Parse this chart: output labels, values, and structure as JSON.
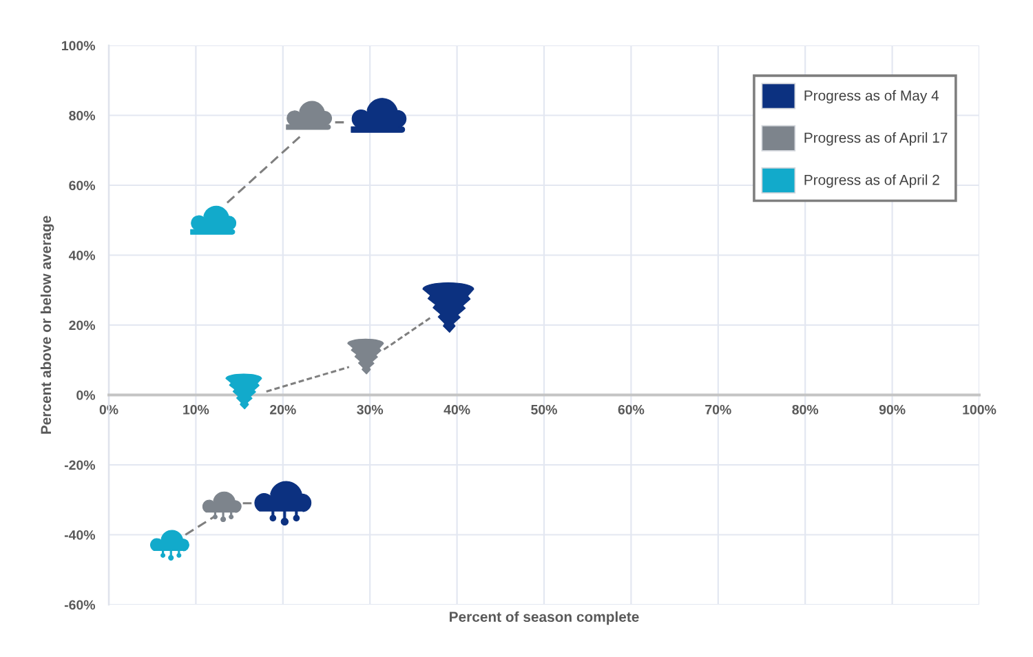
{
  "chart_data": {
    "type": "scatter",
    "xlabel": "Percent of season complete",
    "ylabel": "Percent above or below average",
    "xlim": [
      0,
      100
    ],
    "ylim": [
      -60,
      100
    ],
    "xticks": [
      {
        "value": 0,
        "label": "0%"
      },
      {
        "value": 10,
        "label": "10%"
      },
      {
        "value": 20,
        "label": "20%"
      },
      {
        "value": 30,
        "label": "30%"
      },
      {
        "value": 40,
        "label": "40%"
      },
      {
        "value": 50,
        "label": "50%"
      },
      {
        "value": 60,
        "label": "60%"
      },
      {
        "value": 70,
        "label": "70%"
      },
      {
        "value": 80,
        "label": "80%"
      },
      {
        "value": 90,
        "label": "90%"
      },
      {
        "value": 100,
        "label": "100%"
      }
    ],
    "yticks": [
      {
        "value": -60,
        "label": "-60%"
      },
      {
        "value": -40,
        "label": "-40%"
      },
      {
        "value": -20,
        "label": "-20%"
      },
      {
        "value": 0,
        "label": "0%"
      },
      {
        "value": 20,
        "label": "20%"
      },
      {
        "value": 40,
        "label": "40%"
      },
      {
        "value": 60,
        "label": "60%"
      },
      {
        "value": 80,
        "label": "80%"
      },
      {
        "value": 100,
        "label": "100%"
      }
    ],
    "grid": true,
    "legend": "top right",
    "series": [
      {
        "name": "Progress as of May 4",
        "color": "#0c3180",
        "x": [
          31,
          39,
          20
        ],
        "values": [
          80,
          25,
          -31
        ]
      },
      {
        "name": "Progress as of April 17",
        "color": "#7d848c",
        "x": [
          23,
          29.5,
          13
        ],
        "values": [
          80,
          11,
          -32
        ]
      },
      {
        "name": "Progress as of April 2",
        "color": "#12aacb",
        "x": [
          12,
          15.5,
          7
        ],
        "values": [
          50,
          1,
          -43
        ]
      },
      {
        "type": "line",
        "color": "#7f7f7f",
        "line_style": "dashed",
        "x": [
          13.6,
          22,
          23,
          26,
          27
        ],
        "values": [
          55,
          74,
          null,
          78,
          78
        ]
      },
      {
        "type": "line",
        "color": "#7f7f7f",
        "line_style": "dashed",
        "x": [
          18.1,
          27.6,
          29.5,
          31.6,
          36.9
        ],
        "values": [
          1,
          8,
          null,
          13,
          22
        ]
      },
      {
        "type": "line",
        "color": "#7f7f7f",
        "line_style": "dashed",
        "x": [
          8.8,
          12,
          13,
          15.4,
          16.4
        ],
        "values": [
          -40,
          -35,
          null,
          -31,
          -31
        ]
      }
    ]
  }
}
